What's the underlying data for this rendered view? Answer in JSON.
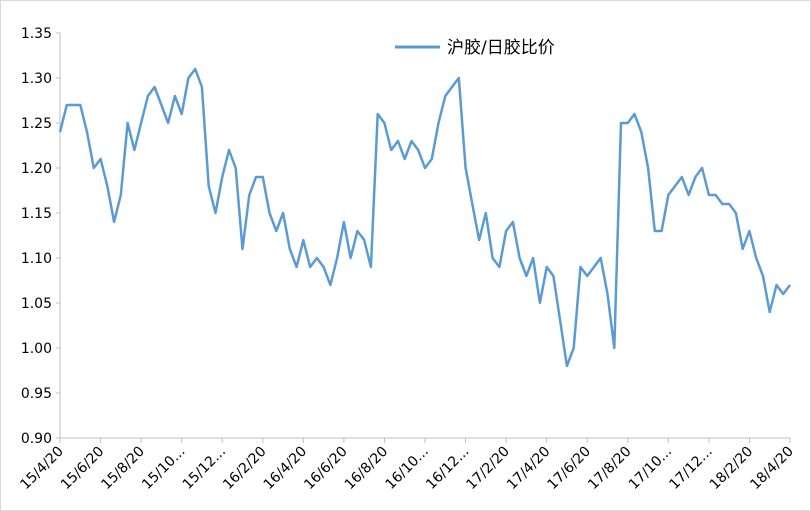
{
  "chart_data": {
    "type": "line",
    "legend_label": "沪胶/日胶比价",
    "categories": [
      "15/4/20",
      null,
      null,
      null,
      null,
      null,
      "15/6/20",
      null,
      null,
      null,
      null,
      null,
      "15/8/20",
      null,
      null,
      null,
      null,
      null,
      "15/10...",
      null,
      null,
      null,
      null,
      null,
      "15/12...",
      null,
      null,
      null,
      null,
      null,
      "16/2/20",
      null,
      null,
      null,
      null,
      null,
      "16/4/20",
      null,
      null,
      null,
      null,
      null,
      "16/6/20",
      null,
      null,
      null,
      null,
      null,
      "16/8/20",
      null,
      null,
      null,
      null,
      null,
      "16/10...",
      null,
      null,
      null,
      null,
      null,
      "16/12...",
      null,
      null,
      null,
      null,
      null,
      "17/2/20",
      null,
      null,
      null,
      null,
      null,
      "17/4/20",
      null,
      null,
      null,
      null,
      null,
      "17/6/20",
      null,
      null,
      null,
      null,
      null,
      "17/8/20",
      null,
      null,
      null,
      null,
      null,
      "17/10...",
      null,
      null,
      null,
      null,
      null,
      "17/12...",
      null,
      null,
      null,
      null,
      null,
      "18/2/20",
      null,
      null,
      null,
      null,
      null,
      "18/4/20"
    ],
    "series": [
      {
        "name": "沪胶/日胶比价",
        "color": "#5b9bd5",
        "values": [
          1.24,
          1.27,
          1.27,
          1.27,
          1.24,
          1.2,
          1.21,
          1.18,
          1.14,
          1.17,
          1.25,
          1.22,
          1.25,
          1.28,
          1.29,
          1.27,
          1.25,
          1.28,
          1.26,
          1.3,
          1.31,
          1.29,
          1.18,
          1.15,
          1.19,
          1.22,
          1.2,
          1.11,
          1.17,
          1.19,
          1.19,
          1.15,
          1.13,
          1.15,
          1.11,
          1.09,
          1.12,
          1.09,
          1.1,
          1.09,
          1.07,
          1.1,
          1.14,
          1.1,
          1.13,
          1.12,
          1.09,
          1.26,
          1.25,
          1.22,
          1.23,
          1.21,
          1.23,
          1.22,
          1.2,
          1.21,
          1.25,
          1.28,
          1.29,
          1.3,
          1.2,
          1.16,
          1.12,
          1.15,
          1.1,
          1.09,
          1.13,
          1.14,
          1.1,
          1.08,
          1.1,
          1.05,
          1.09,
          1.08,
          1.03,
          0.98,
          1.0,
          1.09,
          1.08,
          1.09,
          1.1,
          1.06,
          1.0,
          1.25,
          1.25,
          1.26,
          1.24,
          1.2,
          1.13,
          1.13,
          1.17,
          1.18,
          1.19,
          1.17,
          1.19,
          1.2,
          1.17,
          1.17,
          1.16,
          1.16,
          1.15,
          1.11,
          1.13,
          1.1,
          1.08,
          1.04,
          1.07,
          1.06,
          1.07
        ]
      }
    ],
    "ylim": [
      0.9,
      1.35
    ],
    "yticks": [
      {
        "value": 0.9,
        "label": "0.90"
      },
      0.95,
      {
        "value": 1.0,
        "label": "1.00"
      },
      1.05,
      {
        "value": 1.1,
        "label": "1.10"
      },
      1.15,
      {
        "value": 1.2,
        "label": "1.20"
      },
      1.25,
      {
        "value": 1.3,
        "label": "1.30"
      },
      1.35
    ],
    "grid": false
  }
}
